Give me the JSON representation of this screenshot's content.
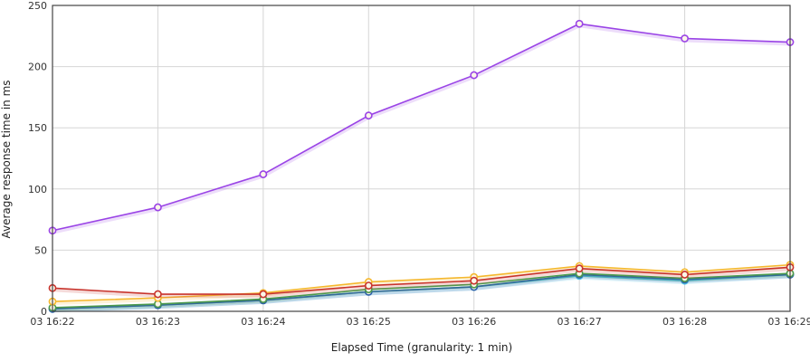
{
  "chart_data": {
    "type": "line",
    "xlabel": "Elapsed Time (granularity: 1 min)",
    "ylabel": "Average response time in ms",
    "x": [
      "03 16:22",
      "03 16:23",
      "03 16:24",
      "03 16:25",
      "03 16:26",
      "03 16:27",
      "03 16:28",
      "03 16:29"
    ],
    "ylim": [
      0,
      250
    ],
    "yticks": [
      0,
      50,
      100,
      150,
      200,
      250
    ],
    "grid": true,
    "series": [
      {
        "color": "#9a44e6",
        "values": [
          66,
          85,
          112,
          160,
          193,
          235,
          223,
          220
        ]
      },
      {
        "color": "#c8342d",
        "values": [
          19,
          14,
          14,
          21,
          25,
          35,
          30,
          36
        ]
      },
      {
        "color": "#f5b82e",
        "values": [
          8,
          11,
          15,
          24,
          28,
          37,
          32,
          38
        ]
      },
      {
        "color": "#4c9a4c",
        "values": [
          3,
          6,
          10,
          18,
          22,
          31,
          27,
          31
        ]
      },
      {
        "color": "#2f5fa8",
        "values": [
          2,
          5,
          9,
          16,
          20,
          30,
          26,
          30
        ]
      },
      {
        "color": "#4ec3e6",
        "values": [
          2,
          5,
          9,
          16,
          20,
          29,
          25,
          30
        ]
      }
    ]
  }
}
